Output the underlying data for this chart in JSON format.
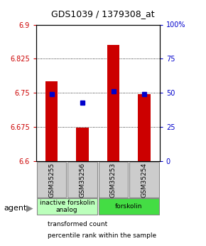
{
  "title": "GDS1039 / 1379308_at",
  "samples": [
    "GSM35255",
    "GSM35256",
    "GSM35253",
    "GSM35254"
  ],
  "bar_values": [
    6.775,
    6.673,
    6.855,
    6.748
  ],
  "bar_base": 6.6,
  "percentile_values": [
    6.748,
    6.728,
    6.754,
    6.748
  ],
  "ylim_left": [
    6.6,
    6.9
  ],
  "ylim_right": [
    0,
    100
  ],
  "yticks_left": [
    6.6,
    6.675,
    6.75,
    6.825,
    6.9
  ],
  "yticks_right": [
    0,
    25,
    50,
    75,
    100
  ],
  "ytick_labels_left": [
    "6.6",
    "6.675",
    "6.75",
    "6.825",
    "6.9"
  ],
  "ytick_labels_right": [
    "0",
    "25",
    "50",
    "75",
    "100%"
  ],
  "bar_color": "#cc0000",
  "percentile_color": "#0000cc",
  "agent_groups": [
    {
      "label": "inactive forskolin\nanalog",
      "samples": [
        0,
        1
      ],
      "color": "#bbffbb"
    },
    {
      "label": "forskolin",
      "samples": [
        2,
        3
      ],
      "color": "#44dd44"
    }
  ],
  "legend_items": [
    {
      "label": "transformed count",
      "color": "#cc0000"
    },
    {
      "label": "percentile rank within the sample",
      "color": "#0000cc"
    }
  ],
  "agent_label": "agent",
  "bar_width": 0.4
}
